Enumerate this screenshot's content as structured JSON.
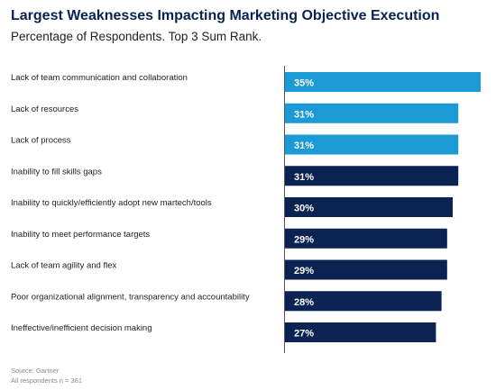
{
  "chart_data": {
    "type": "bar",
    "orientation": "horizontal",
    "title": "Largest Weaknesses Impacting Marketing Objective Execution",
    "subtitle": "Percentage of Respondents. Top 3 Sum Rank.",
    "categories": [
      "Lack of team communication and collaboration",
      "Lack of resources",
      "Lack of process",
      "Inability to fill skills gaps",
      "Inability to quickly/efficiently adopt new martech/tools",
      "Inability to meet performance targets",
      "Lack of team agility and flex",
      "Poor organizational alignment, transparency and accountability",
      "Ineffective/inefficient decision making"
    ],
    "values": [
      35,
      31,
      31,
      31,
      30,
      29,
      29,
      28,
      27
    ],
    "value_labels": [
      "35%",
      "31%",
      "31%",
      "31%",
      "30%",
      "29%",
      "29%",
      "28%",
      "27%"
    ],
    "bar_colors": [
      "#1b9ad6",
      "#1b9ad6",
      "#1b9ad6",
      "#0a2352",
      "#0a2352",
      "#0a2352",
      "#0a2352",
      "#0a2352",
      "#0a2352"
    ],
    "xlim": [
      0,
      35
    ],
    "grid": false,
    "legend": "none"
  },
  "footer": {
    "source": "Source: Gartner",
    "respondents": "All respondents n = 361"
  }
}
